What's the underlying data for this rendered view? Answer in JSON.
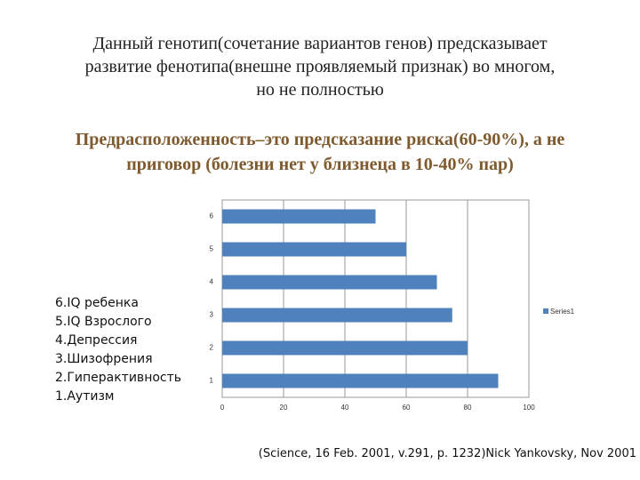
{
  "heading": {
    "lines": [
      "Данный генотип(сочетание  вариантов генов) предсказывает",
      "развитие фенотипа(внешне проявляемый признак) во многом,",
      "но не полностью"
    ]
  },
  "subheading": {
    "lines": [
      "Предрасположенность–это предсказание риска(60-90%), а не",
      "приговор (болезни нет у близнеца в 10-40% пар)"
    ]
  },
  "list": [
    "6.IQ ребенка",
    "5.IQ Взрослого",
    "4.Депрессия",
    "3.Шизофрения",
    "2.Гиперактивность",
    "1.Аутизм"
  ],
  "citation": "(Science, 16 Feb. 2001, v.291, p. 1232)Nick Yankovsky, Nov 2001",
  "chart_data": {
    "type": "hbar",
    "categories": [
      "1",
      "2",
      "3",
      "4",
      "5",
      "6"
    ],
    "series": [
      {
        "name": "Series1",
        "color": "#4f81bd",
        "values": [
          90,
          80,
          75,
          70,
          60,
          50
        ]
      }
    ],
    "xlim": [
      0,
      100
    ],
    "xticks": [
      0,
      20,
      40,
      60,
      80,
      100
    ],
    "grid": true,
    "legend": "right"
  }
}
